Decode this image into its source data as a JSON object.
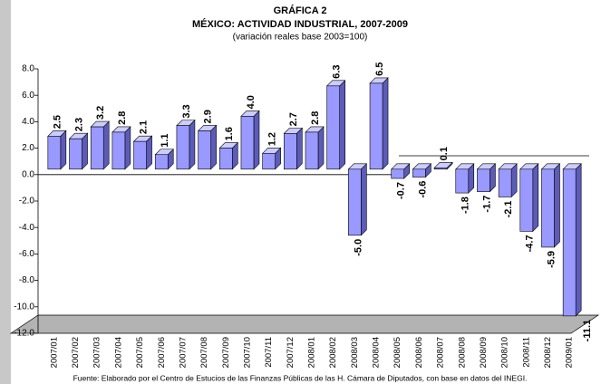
{
  "chart_data": {
    "type": "bar3d",
    "title": "GRÁFICA 2",
    "subtitle": "MÉXICO: ACTIVIDAD INDUSTRIAL, 2007-2009",
    "note": "(variación reales base 2003=100)",
    "source": "Fuente: Elaborado por el Centro de Estucios de las Finanzas Públicas de las H. Cámara de Diputados, con base en datos del INEGI.",
    "categories": [
      "2007/01",
      "2007/02",
      "2007/03",
      "2007/04",
      "2007/05",
      "2007/06",
      "2007/07",
      "2007/08",
      "2007/09",
      "2007/10",
      "2007/11",
      "2007/12",
      "2008/01",
      "2008/02",
      "2008/03",
      "2008/04",
      "2008/05",
      "2008/06",
      "2008/07",
      "2008/08",
      "2008/09",
      "2008/10",
      "2008/11",
      "2008/12",
      "2009/01"
    ],
    "values": [
      2.5,
      2.3,
      3.2,
      2.8,
      2.1,
      1.1,
      3.3,
      2.9,
      1.6,
      4.0,
      1.2,
      2.7,
      2.8,
      6.3,
      -5.0,
      6.5,
      -0.7,
      -0.6,
      0.1,
      -1.8,
      -1.7,
      -2.1,
      -4.7,
      -5.9,
      -11.1
    ],
    "value_labels": [
      "2.5",
      "2.3",
      "3.2",
      "2.8",
      "2.1",
      "1.1",
      "3.3",
      "2.9",
      "1.6",
      "4.0",
      "1.2",
      "2.7",
      "2.8",
      "6.3",
      "-5.0",
      "6.5",
      "-0.7",
      "-0.6",
      "0.1",
      "-1.8",
      "-1.7",
      "-2.1",
      "-4.7",
      "-5.9",
      "-11.1"
    ],
    "color": "#9999ff",
    "ylim": [
      -12,
      8
    ],
    "yticks": [
      {
        "value": 8,
        "label": "8.0"
      },
      {
        "value": 6,
        "label": "6.0"
      },
      {
        "value": 4,
        "label": "4.0"
      },
      {
        "value": 2,
        "label": "2.0"
      },
      {
        "value": 0,
        "label": "0.0"
      },
      {
        "value": -2,
        "label": "-2.0"
      },
      {
        "value": -4,
        "label": "-4.0"
      },
      {
        "value": -6,
        "label": "-6.0"
      },
      {
        "value": -8,
        "label": "-8.0"
      },
      {
        "value": -10,
        "label": "-10.0"
      },
      {
        "value": -12,
        "label": "-12.0"
      }
    ]
  }
}
